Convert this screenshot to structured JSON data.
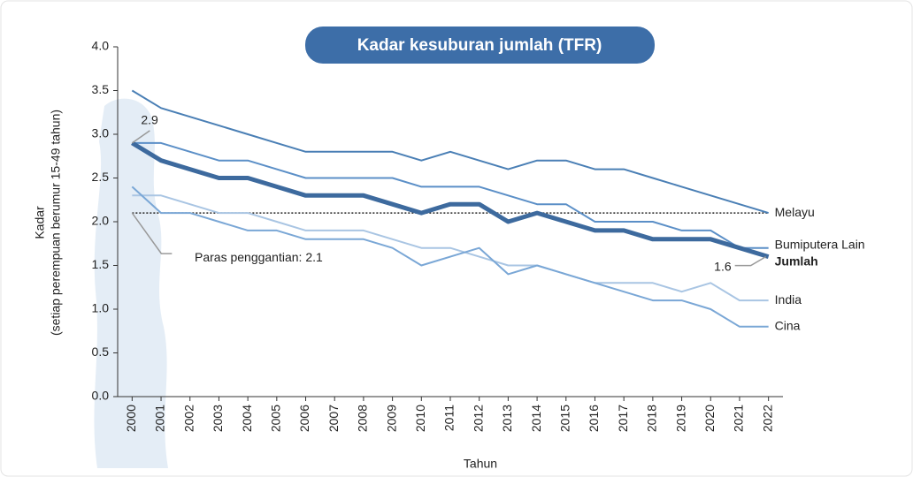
{
  "chart_data": {
    "type": "line",
    "title": "Kadar kesuburan jumlah (TFR)",
    "y_label": [
      "Kadar",
      "(setiap perempuan berumur 15-49 tahun)"
    ],
    "x_label": "Tahun",
    "categories": [
      "2000",
      "2001",
      "2002",
      "2003",
      "2004",
      "2005",
      "2006",
      "2007",
      "2008",
      "2009",
      "2010",
      "2011",
      "2012",
      "2013",
      "2014",
      "2015",
      "2016",
      "2017",
      "2018",
      "2019",
      "2020",
      "2021",
      "2022"
    ],
    "series": [
      {
        "name": "Melayu",
        "color": "#4a7fb5",
        "width": 2,
        "values": [
          3.5,
          3.3,
          3.2,
          3.1,
          3.0,
          2.9,
          2.8,
          2.8,
          2.8,
          2.8,
          2.7,
          2.8,
          2.7,
          2.6,
          2.7,
          2.7,
          2.6,
          2.6,
          2.5,
          2.4,
          2.3,
          2.2,
          2.1
        ]
      },
      {
        "name": "Bumiputera Lain",
        "color": "#5b8fc7",
        "width": 2,
        "values": [
          2.9,
          2.9,
          2.8,
          2.7,
          2.7,
          2.6,
          2.5,
          2.5,
          2.5,
          2.5,
          2.4,
          2.4,
          2.4,
          2.3,
          2.2,
          2.2,
          2.0,
          2.0,
          2.0,
          1.9,
          1.9,
          1.7,
          1.7
        ]
      },
      {
        "name": "Jumlah",
        "color": "#3d6a9e",
        "width": 5,
        "values": [
          2.9,
          2.7,
          2.6,
          2.5,
          2.5,
          2.4,
          2.3,
          2.3,
          2.3,
          2.2,
          2.1,
          2.2,
          2.2,
          2.0,
          2.1,
          2.0,
          1.9,
          1.9,
          1.8,
          1.8,
          1.8,
          1.7,
          1.6
        ]
      },
      {
        "name": "India",
        "color": "#a9c5e3",
        "width": 2,
        "values": [
          2.3,
          2.3,
          2.2,
          2.1,
          2.1,
          2.0,
          1.9,
          1.9,
          1.9,
          1.8,
          1.7,
          1.7,
          1.6,
          1.5,
          1.5,
          1.4,
          1.3,
          1.3,
          1.3,
          1.2,
          1.3,
          1.1,
          1.1
        ]
      },
      {
        "name": "Cina",
        "color": "#7aa7d6",
        "width": 2,
        "values": [
          2.4,
          2.1,
          2.1,
          2.0,
          1.9,
          1.9,
          1.8,
          1.8,
          1.8,
          1.7,
          1.5,
          1.6,
          1.7,
          1.4,
          1.5,
          1.4,
          1.3,
          1.2,
          1.1,
          1.1,
          1.0,
          0.8,
          0.8
        ]
      }
    ],
    "reference_line": {
      "value": 2.1,
      "label": "Paras penggantian: 2.1"
    },
    "annotations": [
      "2.9",
      "1.6"
    ],
    "ylim": [
      0,
      4
    ],
    "yticks": [
      {
        "value": 0,
        "label": "0.0"
      },
      {
        "value": 0.5,
        "label": "0.5"
      },
      {
        "value": 1,
        "label": "1.0"
      },
      {
        "value": 1.5,
        "label": "1.5"
      },
      {
        "value": 2,
        "label": "2.0"
      },
      {
        "value": 2.5,
        "label": "2.5"
      },
      {
        "value": 3,
        "label": "3.0"
      },
      {
        "value": 3.5,
        "label": "3.5"
      },
      {
        "value": 4,
        "label": "4.0"
      }
    ]
  }
}
